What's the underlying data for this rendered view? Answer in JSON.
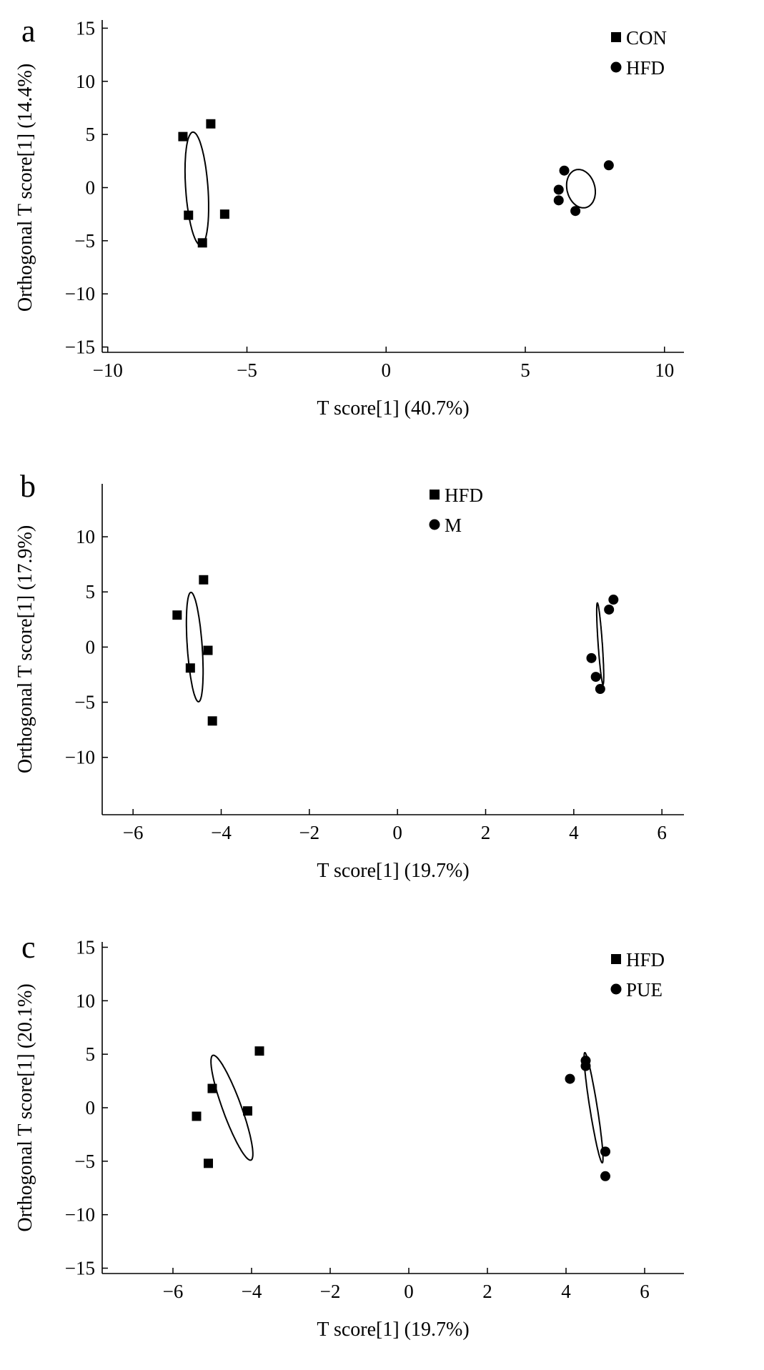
{
  "chart_data": [
    {
      "type": "scatter",
      "panel_label": "a",
      "xlabel": "T score[1] (40.7%)",
      "ylabel": "Orthogonal T score[1] (14.4%)",
      "xlim": [
        -10.2,
        10.7
      ],
      "ylim": [
        -15.5,
        15.5
      ],
      "xticks": [
        -10,
        -5,
        0,
        5,
        10
      ],
      "yticks": [
        15,
        10,
        5,
        0,
        -5,
        -10,
        -15
      ],
      "xtick_labels": [
        "−10",
        "−5",
        "0",
        "5",
        "10"
      ],
      "ytick_labels": [
        "15",
        "10",
        "5",
        "0",
        "−5",
        "−10",
        "−15"
      ],
      "legend_placement": "top-right",
      "series": [
        {
          "name": "CON",
          "marker": "square",
          "points": [
            [
              -7.3,
              4.8
            ],
            [
              -6.3,
              6.0
            ],
            [
              -7.1,
              -2.6
            ],
            [
              -5.8,
              -2.5
            ],
            [
              -6.6,
              -5.2
            ]
          ],
          "ellipse": {
            "cx": -6.8,
            "cy": -0.1,
            "rx": 12.2,
            "ry": 2.4,
            "angle_deg": -86
          }
        },
        {
          "name": "HFD",
          "marker": "circle",
          "points": [
            [
              6.4,
              1.6
            ],
            [
              8.0,
              2.1
            ],
            [
              6.2,
              -0.2
            ],
            [
              6.2,
              -1.2
            ],
            [
              6.8,
              -2.2
            ]
          ],
          "ellipse": {
            "cx": 7.0,
            "cy": -0.1,
            "rx": 3.0,
            "ry": 4.2,
            "angle_deg": 15
          }
        }
      ]
    },
    {
      "type": "scatter",
      "panel_label": "b",
      "xlabel": "T score[1] (19.7%)",
      "ylabel": "Orthogonal T score[1] (17.9%)",
      "xlim": [
        -6.7,
        6.5
      ],
      "ylim": [
        -15.2,
        14.8
      ],
      "xticks": [
        -6,
        -4,
        -2,
        0,
        2,
        4,
        6
      ],
      "yticks": [
        10,
        5,
        0,
        -5,
        -10
      ],
      "xtick_labels": [
        "−6",
        "−4",
        "−2",
        "0",
        "2",
        "4",
        "6"
      ],
      "ytick_labels": [
        "10",
        "5",
        "0",
        "−5",
        "−10"
      ],
      "legend_placement": "top-center",
      "series": [
        {
          "name": "HFD",
          "marker": "square",
          "points": [
            [
              -4.4,
              6.1
            ],
            [
              -5.0,
              2.9
            ],
            [
              -4.3,
              -0.3
            ],
            [
              -4.7,
              -1.9
            ],
            [
              -4.2,
              -6.7
            ]
          ],
          "ellipse": {
            "cx": -4.6,
            "cy": 0.0,
            "rx": 11.8,
            "ry": 1.6,
            "angle_deg": -86
          }
        },
        {
          "name": "M",
          "marker": "circle",
          "points": [
            [
              4.9,
              4.3
            ],
            [
              4.8,
              3.4
            ],
            [
              4.4,
              -1.0
            ],
            [
              4.5,
              -2.7
            ],
            [
              4.6,
              -3.8
            ]
          ],
          "ellipse": {
            "cx": 4.6,
            "cy": 0.3,
            "rx": 8.8,
            "ry": 0.45,
            "angle_deg": -86
          }
        }
      ]
    },
    {
      "type": "scatter",
      "panel_label": "c",
      "xlabel": "T score[1] (19.7%)",
      "ylabel": "Orthogonal T score[1] (20.1%)",
      "xlim": [
        -7.8,
        7.0
      ],
      "ylim": [
        -15.5,
        15.5
      ],
      "xticks": [
        -6,
        -4,
        -2,
        0,
        2,
        4,
        6
      ],
      "yticks": [
        15,
        10,
        5,
        0,
        -5,
        -10,
        -15
      ],
      "xtick_labels": [
        "−6",
        "−4",
        "−2",
        "0",
        "2",
        "4",
        "6"
      ],
      "ytick_labels": [
        "15",
        "10",
        "5",
        "0",
        "−5",
        "−10",
        "−15"
      ],
      "legend_placement": "top-right",
      "series": [
        {
          "name": "HFD",
          "marker": "square",
          "points": [
            [
              -3.8,
              5.3
            ],
            [
              -5.0,
              1.8
            ],
            [
              -4.1,
              -0.3
            ],
            [
              -5.4,
              -0.8
            ],
            [
              -5.1,
              -5.2
            ]
          ],
          "ellipse": {
            "cx": -4.5,
            "cy": 0.0,
            "rx": 12.0,
            "ry": 2.0,
            "angle_deg": -70
          }
        },
        {
          "name": "PUE",
          "marker": "circle",
          "points": [
            [
              4.5,
              4.4
            ],
            [
              4.5,
              3.9
            ],
            [
              4.1,
              2.7
            ],
            [
              5.0,
              -4.1
            ],
            [
              5.0,
              -6.4
            ]
          ],
          "ellipse": {
            "cx": 4.7,
            "cy": 0.0,
            "rx": 12.0,
            "ry": 0.8,
            "angle_deg": -81
          }
        }
      ]
    }
  ]
}
